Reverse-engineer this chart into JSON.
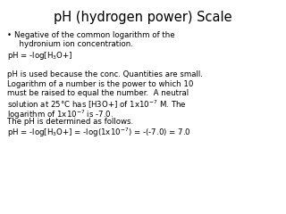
{
  "title": "pH (hydrogen power) Scale",
  "background_color": "#ffffff",
  "text_color": "#000000",
  "title_fontsize": 10.5,
  "body_fontsize": 6.2,
  "bullet": "•",
  "bullet_text_line1": "Negative of the common logarithm of the",
  "bullet_text_line2": "  hydronium ion concentration.",
  "line_ph_formula": "pH = -log[H$_3$O+]",
  "line_blank": "",
  "line3": "pH is used because the conc. Quantities are small.",
  "line4a": "Logarithm of a number is the power to which 10",
  "line4b": "must be raised to equal the number.  A neutral",
  "line4c": "solution at 25°C has [H3O+] of 1x10$^{-7}$ M. The",
  "line4d": "logarithm of 1x10$^{-7}$ is -7.0.",
  "line5": "The pH is determined as follows.",
  "line6": "pH = -log[H$_3$O+] = -log(1x10$^{-7}$) = -(-7.0) = 7.0"
}
